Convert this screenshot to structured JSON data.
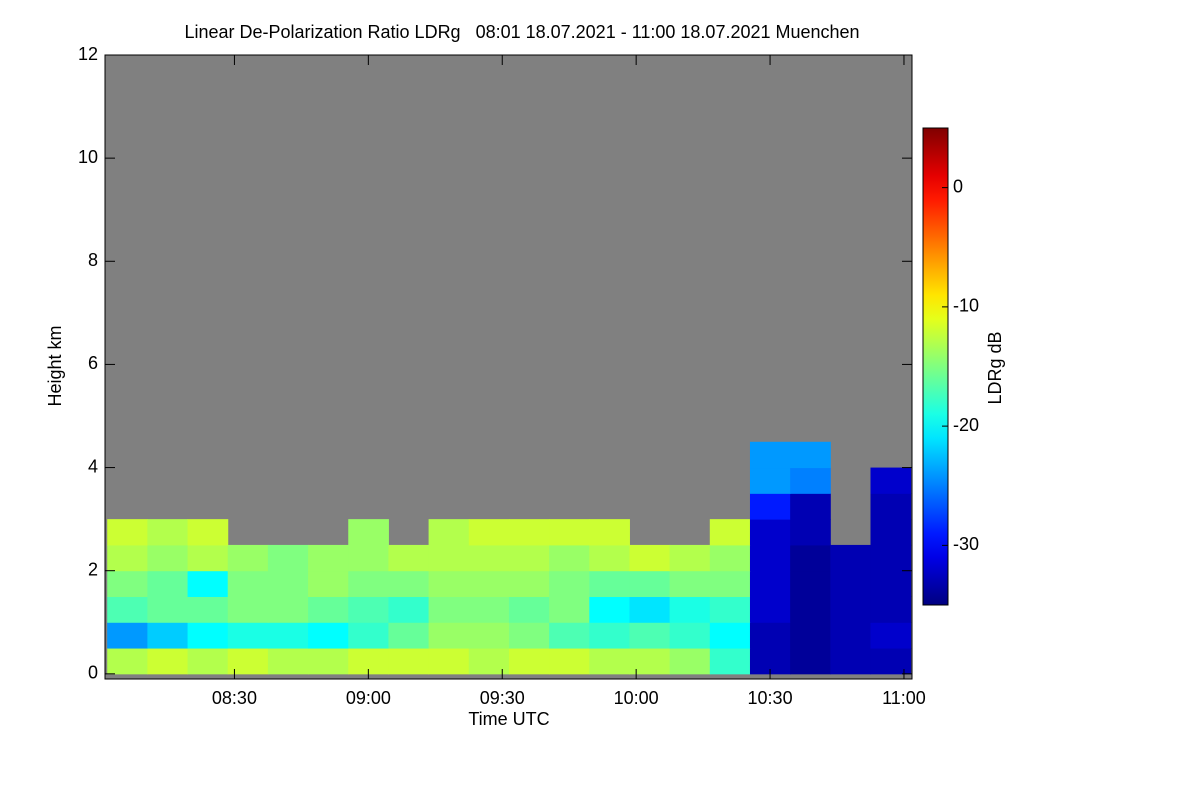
{
  "chart_data": {
    "type": "heatmap",
    "title": "Linear De-Polarization Ratio LDRg   08:01 18.07.2021 - 11:00 18.07.2021 Muenchen",
    "x_label": "Time UTC",
    "y_label": "Height km",
    "colorbar_label": "LDRg dB",
    "colormap": "jet",
    "background": "#808080",
    "xlim": [
      8.0167,
      11.03
    ],
    "xticks": [
      {
        "value": 8.5,
        "label": "08:30"
      },
      {
        "value": 9.0,
        "label": "09:00"
      },
      {
        "value": 9.5,
        "label": "09:30"
      },
      {
        "value": 10.0,
        "label": "10:00"
      },
      {
        "value": 10.5,
        "label": "10:30"
      },
      {
        "value": 11.0,
        "label": "11:00"
      }
    ],
    "ylim": [
      -0.1,
      12
    ],
    "yticks": [
      0,
      2,
      4,
      6,
      8,
      10,
      12
    ],
    "clim": [
      -35,
      5
    ],
    "cticks": [
      0,
      -10,
      -20,
      -30
    ],
    "x": [
      8.1,
      8.25,
      8.4,
      8.55,
      8.7,
      8.85,
      9.0,
      9.15,
      9.3,
      9.45,
      9.6,
      9.75,
      9.9,
      10.05,
      10.2,
      10.35,
      10.5,
      10.65,
      10.8,
      10.95
    ],
    "y": [
      0.25,
      0.75,
      1.25,
      1.75,
      2.25,
      2.75,
      3.25,
      3.75,
      4.25
    ],
    "z": [
      [
        -13,
        -12,
        -13,
        -12,
        -13,
        -13,
        -12,
        -12,
        -12,
        -13,
        -12,
        -12,
        -13,
        -13,
        -14,
        -18,
        -33,
        -34,
        -33,
        -33
      ],
      [
        -24,
        -22,
        -20,
        -19,
        -19,
        -20,
        -18,
        -16,
        -14,
        -14,
        -15,
        -17,
        -18,
        -17,
        -18,
        -20,
        -33,
        -34,
        -33,
        -32
      ],
      [
        -17,
        -16,
        -16,
        -15,
        -15,
        -16,
        -17,
        -18,
        -15,
        -15,
        -16,
        -15,
        -20,
        -21,
        -19,
        -18,
        -32,
        -34,
        -33,
        -33
      ],
      [
        -15,
        -16,
        -20,
        -15,
        -15,
        -14,
        -15,
        -15,
        -14,
        -14,
        -14,
        -15,
        -16,
        -16,
        -15,
        -15,
        -32,
        -34,
        -33,
        -33
      ],
      [
        -13,
        -14,
        -13,
        -14,
        -15,
        -14,
        -14,
        -13,
        -13,
        -13,
        -13,
        -14,
        -13,
        -12,
        -13,
        -14,
        -32,
        -34,
        -33,
        -33
      ],
      [
        -12,
        -13,
        -12,
        null,
        null,
        null,
        -14,
        null,
        -13,
        -12,
        -12,
        -12,
        -12,
        null,
        null,
        -12,
        -32,
        -33,
        null,
        -33
      ],
      [
        null,
        null,
        null,
        null,
        null,
        null,
        null,
        null,
        null,
        null,
        null,
        null,
        null,
        null,
        null,
        null,
        -29,
        -33,
        null,
        -33
      ],
      [
        null,
        null,
        null,
        null,
        null,
        null,
        null,
        null,
        null,
        null,
        null,
        null,
        null,
        null,
        null,
        null,
        -24,
        -25,
        null,
        -32
      ],
      [
        null,
        null,
        null,
        null,
        null,
        null,
        null,
        null,
        null,
        null,
        null,
        null,
        null,
        null,
        null,
        null,
        -24,
        -24,
        null,
        null
      ]
    ]
  }
}
